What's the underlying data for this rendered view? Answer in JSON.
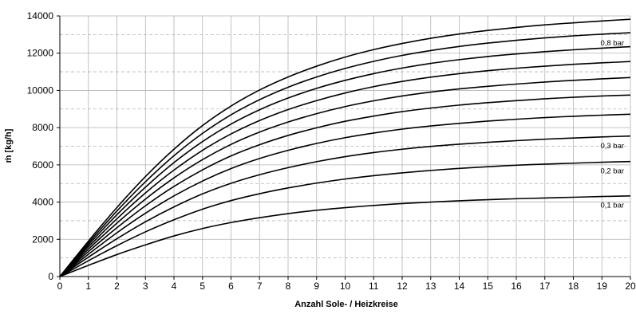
{
  "chart_data": {
    "type": "line",
    "xlabel": "Anzahl Sole- / Heizkreise",
    "ylabel": "ṁ [kg/h]",
    "xlim": [
      0,
      20
    ],
    "ylim": [
      0,
      14000
    ],
    "x_ticks": [
      0,
      1,
      2,
      3,
      4,
      5,
      6,
      7,
      8,
      9,
      10,
      11,
      12,
      13,
      14,
      15,
      16,
      17,
      18,
      19,
      20
    ],
    "y_ticks": [
      0,
      2000,
      4000,
      6000,
      8000,
      10000,
      12000,
      14000
    ],
    "grid": "major solid, minor dashed",
    "legend": "none",
    "x": [
      0,
      1,
      2,
      3,
      4,
      5,
      6,
      7,
      8,
      9,
      10,
      11,
      12,
      13,
      14,
      15,
      16,
      17,
      18,
      19,
      20
    ],
    "series": [
      {
        "name": "0,1 bar",
        "values": [
          0,
          600,
          1180,
          1700,
          2180,
          2580,
          2900,
          3160,
          3380,
          3560,
          3700,
          3820,
          3920,
          4000,
          4070,
          4130,
          4180,
          4220,
          4260,
          4300,
          4330
        ]
      },
      {
        "name": "0,2 bar",
        "values": [
          0,
          850,
          1660,
          2400,
          3050,
          3620,
          4080,
          4450,
          4760,
          5020,
          5240,
          5420,
          5570,
          5700,
          5810,
          5900,
          5980,
          6040,
          6090,
          6140,
          6180
        ]
      },
      {
        "name": "0,3 bar",
        "values": [
          0,
          1040,
          2030,
          2940,
          3740,
          4440,
          5010,
          5470,
          5850,
          6170,
          6440,
          6660,
          6840,
          6990,
          7110,
          7210,
          7300,
          7380,
          7440,
          7500,
          7550
        ]
      },
      {
        "name": "",
        "values": [
          0,
          1200,
          2350,
          3400,
          4330,
          5130,
          5800,
          6340,
          6780,
          7150,
          7460,
          7710,
          7920,
          8090,
          8230,
          8350,
          8450,
          8540,
          8610,
          8670,
          8720
        ]
      },
      {
        "name": "",
        "values": [
          0,
          1340,
          2620,
          3800,
          4840,
          5730,
          6480,
          7080,
          7580,
          7990,
          8340,
          8620,
          8860,
          9050,
          9210,
          9340,
          9450,
          9550,
          9630,
          9700,
          9750
        ]
      },
      {
        "name": "",
        "values": [
          0,
          1470,
          2870,
          4160,
          5300,
          6280,
          7100,
          7760,
          8300,
          8750,
          9130,
          9440,
          9700,
          9910,
          10080,
          10220,
          10340,
          10450,
          10540,
          10620,
          10690
        ]
      },
      {
        "name": "",
        "values": [
          0,
          1590,
          3100,
          4490,
          5720,
          6780,
          7660,
          8380,
          8970,
          9450,
          9860,
          10200,
          10480,
          10710,
          10900,
          11060,
          11190,
          11300,
          11400,
          11480,
          11550
        ]
      },
      {
        "name": "",
        "values": [
          0,
          1700,
          3320,
          4800,
          6120,
          7250,
          8190,
          8960,
          9590,
          10110,
          10540,
          10900,
          11200,
          11450,
          11650,
          11820,
          11960,
          12080,
          12180,
          12270,
          12350
        ]
      },
      {
        "name": "0,8 bar",
        "values": [
          0,
          1800,
          3520,
          5090,
          6490,
          7690,
          8690,
          9500,
          10170,
          10720,
          11180,
          11560,
          11880,
          12140,
          12360,
          12540,
          12690,
          12820,
          12930,
          13020,
          13100
        ]
      },
      {
        "name": "",
        "values": [
          0,
          1900,
          3710,
          5370,
          6840,
          8110,
          9160,
          10020,
          10720,
          11300,
          11790,
          12190,
          12520,
          12800,
          13030,
          13220,
          13380,
          13520,
          13630,
          13730,
          13820
        ]
      }
    ]
  }
}
